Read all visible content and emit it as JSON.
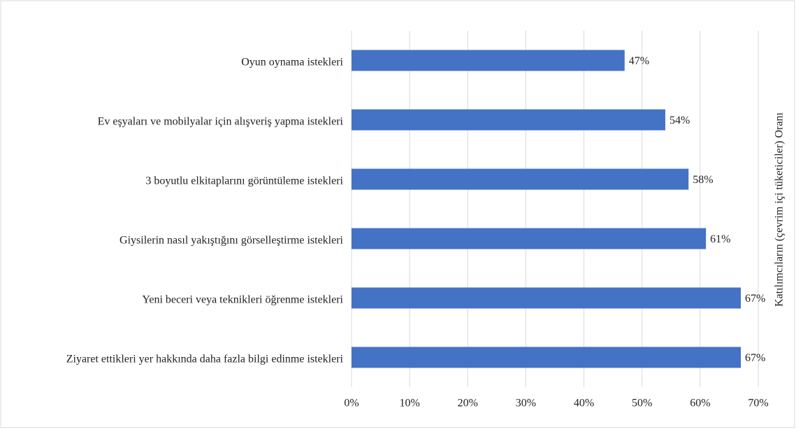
{
  "chart_data": {
    "type": "bar",
    "orientation": "horizontal",
    "categories": [
      "Oyun oynama istekleri",
      "Ev eşyaları ve mobilyalar için alışveriş yapma istekleri",
      "3 boyutlu elkitaplarını görüntüleme istekleri",
      "Giysilerin nasıl yakıştığını görselleştirme istekleri",
      "Yeni beceri veya teknikleri öğrenme istekleri",
      "Ziyaret ettikleri yer hakkında daha fazla bilgi edinme istekleri"
    ],
    "values": [
      47,
      54,
      58,
      61,
      67,
      67
    ],
    "value_labels": [
      "47%",
      "54%",
      "58%",
      "61%",
      "67%",
      "67%"
    ],
    "color": "#4472c4",
    "xlim": [
      0,
      70
    ],
    "xticks": [
      {
        "value": 0,
        "label": "0%"
      },
      {
        "value": 10,
        "label": "10%"
      },
      {
        "value": 20,
        "label": "20%"
      },
      {
        "value": 30,
        "label": "30%"
      },
      {
        "value": 40,
        "label": "40%"
      },
      {
        "value": 50,
        "label": "50%"
      },
      {
        "value": 60,
        "label": "60%"
      },
      {
        "value": 70,
        "label": "70%"
      }
    ],
    "y_axis_label_right": "Katılımcıların (çevrim içi tüketiciler) Oranı",
    "grid": true
  }
}
